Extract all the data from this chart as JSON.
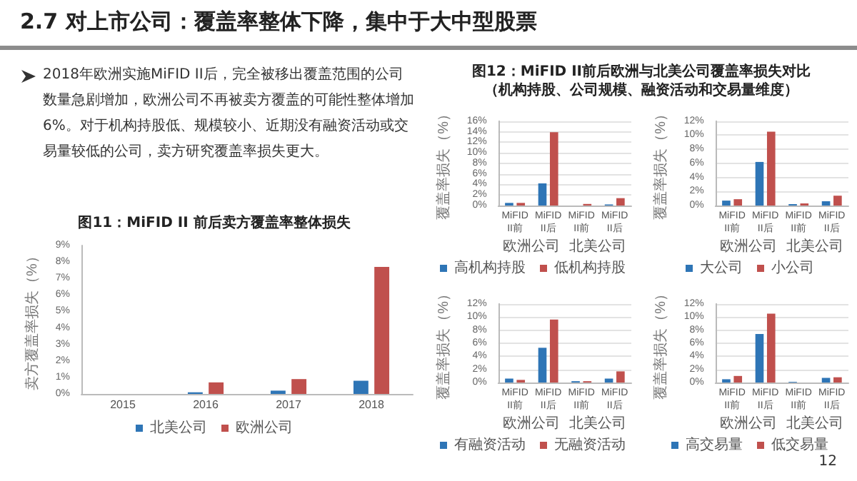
{
  "chart_data": [
    {
      "type": "other",
      "title": "2.7 对上市公司：覆盖率整体下降，集中于大中型股票",
      "annotations": [
        "2018年欧洲实施MiFID II后，完全被移出覆盖范围的公司数量急剧增加，欧洲公司不再被卖方覆盖的可能性整体增加6%。对于机构持股低、规模较小、近期没有融资活动或交易量较低的公司，卖方研究覆盖率损失更大。",
        "12"
      ]
    },
    {
      "type": "bar",
      "title": "图11：MiFID II 前后卖方覆盖率整体损失",
      "ylabel": "卖方覆盖率损失（%）",
      "categories": [
        "2015",
        "2016",
        "2017",
        "2018"
      ],
      "series": [
        {
          "name": "北美公司",
          "color": "#2e75b6",
          "values": [
            0,
            0.1,
            0.2,
            0.8
          ]
        },
        {
          "name": "欧洲公司",
          "color": "#c0504d",
          "values": [
            0,
            0.7,
            0.9,
            7.7
          ]
        }
      ],
      "ylim": [
        0,
        9
      ],
      "yticks": [
        {
          "value": 0,
          "label": "0%"
        },
        {
          "value": 1,
          "label": "1%"
        },
        {
          "value": 2,
          "label": "2%"
        },
        {
          "value": 3,
          "label": "3%"
        },
        {
          "value": 4,
          "label": "4%"
        },
        {
          "value": 5,
          "label": "5%"
        },
        {
          "value": 6,
          "label": "6%"
        },
        {
          "value": 7,
          "label": "7%"
        },
        {
          "value": 8,
          "label": "8%"
        },
        {
          "value": 9,
          "label": "9%"
        }
      ],
      "legend": "bottom"
    },
    {
      "type": "bar",
      "title": "图12：MiFID II前后欧洲与北美公司覆盖率损失对比",
      "subtitle": "（机构持股、公司规模、融资活动和交易量维度）",
      "ylabel": "覆盖率损失（%）",
      "categories": [
        "MiFID II前",
        "MiFID II后",
        "MiFID II前",
        "MiFID II后"
      ],
      "annotations": [
        "欧洲公司",
        "北美公司"
      ],
      "series": [
        {
          "name": "高机构持股",
          "color": "#2e75b6",
          "values": [
            0.5,
            4.2,
            0,
            0.2
          ]
        },
        {
          "name": "低机构持股",
          "color": "#c0504d",
          "values": [
            0.5,
            13.9,
            0.3,
            1.4
          ]
        }
      ],
      "ylim": [
        0,
        16
      ],
      "yticks": [
        {
          "value": 0,
          "label": "0%"
        },
        {
          "value": 2,
          "label": "2%"
        },
        {
          "value": 4,
          "label": "4%"
        },
        {
          "value": 6,
          "label": "6%"
        },
        {
          "value": 8,
          "label": "8%"
        },
        {
          "value": 10,
          "label": "10%"
        },
        {
          "value": 12,
          "label": "12%"
        },
        {
          "value": 14,
          "label": "14%"
        },
        {
          "value": 16,
          "label": "16%"
        }
      ],
      "grid": "y",
      "legend": "bottom"
    },
    {
      "type": "bar",
      "ylabel": "覆盖率损失（%）",
      "categories": [
        "MiFID II前",
        "MiFID II后",
        "MiFID II前",
        "MiFID II后"
      ],
      "annotations": [
        "欧洲公司",
        "北美公司"
      ],
      "series": [
        {
          "name": "大公司",
          "color": "#2e75b6",
          "values": [
            0.7,
            6.2,
            0.2,
            0.6
          ]
        },
        {
          "name": "小公司",
          "color": "#c0504d",
          "values": [
            0.9,
            10.5,
            0.3,
            1.4
          ]
        }
      ],
      "ylim": [
        0,
        12
      ],
      "yticks": [
        {
          "value": 0,
          "label": "0%"
        },
        {
          "value": 2,
          "label": "2%"
        },
        {
          "value": 4,
          "label": "4%"
        },
        {
          "value": 6,
          "label": "6%"
        },
        {
          "value": 8,
          "label": "8%"
        },
        {
          "value": 10,
          "label": "10%"
        },
        {
          "value": 12,
          "label": "12%"
        }
      ],
      "grid": "y",
      "legend": "bottom"
    },
    {
      "type": "bar",
      "ylabel": "覆盖率损失（%）",
      "categories": [
        "MiFID II前",
        "MiFID II后",
        "MiFID II前",
        "MiFID II后"
      ],
      "annotations": [
        "欧洲公司",
        "北美公司"
      ],
      "series": [
        {
          "name": "有融资活动",
          "color": "#2e75b6",
          "values": [
            0.6,
            5.3,
            0.2,
            0.6
          ]
        },
        {
          "name": "无融资活动",
          "color": "#c0504d",
          "values": [
            0.4,
            9.6,
            0.2,
            1.7
          ]
        }
      ],
      "ylim": [
        0,
        12
      ],
      "yticks": [
        {
          "value": 0,
          "label": "0%"
        },
        {
          "value": 2,
          "label": "2%"
        },
        {
          "value": 4,
          "label": "4%"
        },
        {
          "value": 6,
          "label": "6%"
        },
        {
          "value": 8,
          "label": "8%"
        },
        {
          "value": 10,
          "label": "10%"
        },
        {
          "value": 12,
          "label": "12%"
        }
      ],
      "grid": "y",
      "legend": "bottom"
    },
    {
      "type": "bar",
      "ylabel": "覆盖率损失（%）",
      "categories": [
        "MiFID II前",
        "MiFID II后",
        "MiFID II前",
        "MiFID II后"
      ],
      "annotations": [
        "欧洲公司",
        "北美公司"
      ],
      "series": [
        {
          "name": "高交易量",
          "color": "#2e75b6",
          "values": [
            0.5,
            7.4,
            0.1,
            0.7
          ]
        },
        {
          "name": "低交易量",
          "color": "#c0504d",
          "values": [
            1.0,
            10.5,
            0,
            0.8
          ]
        }
      ],
      "ylim": [
        0,
        12
      ],
      "yticks": [
        {
          "value": 0,
          "label": "0%"
        },
        {
          "value": 2,
          "label": "2%"
        },
        {
          "value": 4,
          "label": "4%"
        },
        {
          "value": 6,
          "label": "6%"
        },
        {
          "value": 8,
          "label": "8%"
        },
        {
          "value": 10,
          "label": "10%"
        },
        {
          "value": 12,
          "label": "12%"
        }
      ],
      "grid": "y",
      "legend": "bottom"
    }
  ]
}
